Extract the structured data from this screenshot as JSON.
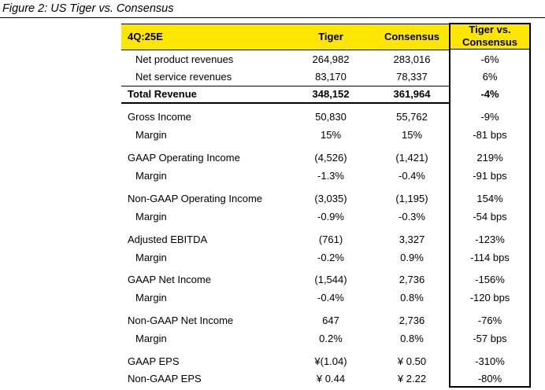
{
  "figure": {
    "title": "Figure 2: US Tiger vs. Consensus"
  },
  "header": {
    "period": "4Q:25E",
    "tiger": "Tiger",
    "consensus": "Consensus",
    "diff_line1": "Tiger vs.",
    "diff_line2": "Consensus"
  },
  "rows": [
    {
      "label": "Net product revenues",
      "tiger": "264,982",
      "consensus": "283,016",
      "diff": "-6%"
    },
    {
      "label": "Net service revenues",
      "tiger": "83,170",
      "consensus": "78,337",
      "diff": "6%"
    },
    {
      "label": "Total Revenue",
      "tiger": "348,152",
      "consensus": "361,964",
      "diff": "-4%"
    },
    {
      "label": "Gross Income",
      "tiger": "50,830",
      "consensus": "55,762",
      "diff": "-9%"
    },
    {
      "label": "Margin",
      "tiger": "15%",
      "consensus": "15%",
      "diff": "-81 bps"
    },
    {
      "label": "GAAP Operating Income",
      "tiger": "(4,526)",
      "consensus": "(1,421)",
      "diff": "219%"
    },
    {
      "label": "Margin",
      "tiger": "-1.3%",
      "consensus": "-0.4%",
      "diff": "-91 bps"
    },
    {
      "label": "Non-GAAP Operating Income",
      "tiger": "(3,035)",
      "consensus": "(1,195)",
      "diff": "154%"
    },
    {
      "label": "Margin",
      "tiger": "-0.9%",
      "consensus": "-0.3%",
      "diff": "-54 bps"
    },
    {
      "label": "Adjusted EBITDA",
      "tiger": "(761)",
      "consensus": "3,327",
      "diff": "-123%"
    },
    {
      "label": "Margin",
      "tiger": "-0.2%",
      "consensus": "0.9%",
      "diff": "-114 bps"
    },
    {
      "label": "GAAP Net Income",
      "tiger": "(1,544)",
      "consensus": "2,736",
      "diff": "-156%"
    },
    {
      "label": "Margin",
      "tiger": "-0.4%",
      "consensus": "0.8%",
      "diff": "-120 bps"
    },
    {
      "label": "Non-GAAP Net Income",
      "tiger": "647",
      "consensus": "2,736",
      "diff": "-76%"
    },
    {
      "label": "Margin",
      "tiger": "0.2%",
      "consensus": "0.8%",
      "diff": "-57 bps"
    },
    {
      "label": "GAAP EPS",
      "tiger": "¥(1.04)",
      "consensus": "¥ 0.50",
      "diff": "-310%"
    },
    {
      "label": "Non-GAAP EPS",
      "tiger": "¥ 0.44",
      "consensus": "¥ 2.22",
      "diff": "-80%"
    }
  ]
}
